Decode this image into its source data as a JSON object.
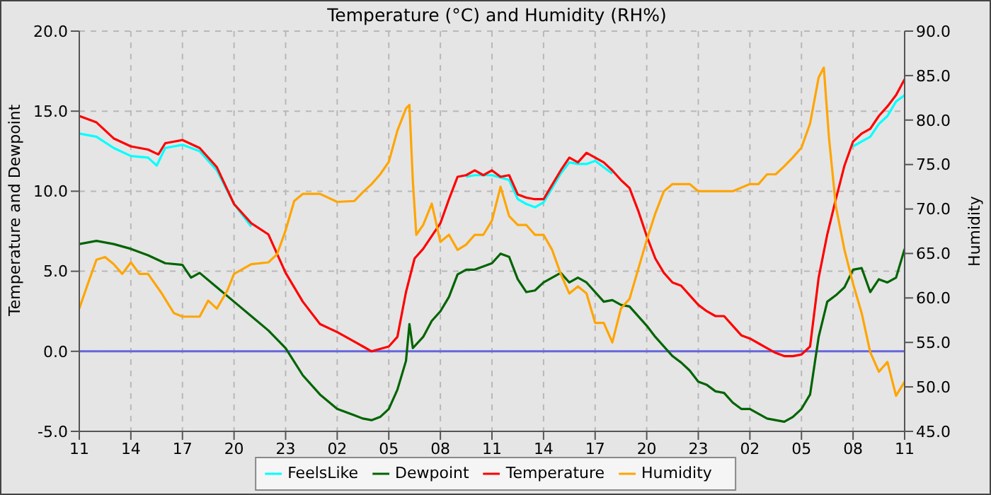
{
  "chart_data": {
    "type": "line",
    "title": "Temperature (°C) and Humidity (RH%)",
    "ylabel": "Temperature and Dewpoint",
    "y2label": "Humidity",
    "xlim": [
      "--01-01T11:00",
      "--01-03T11:00"
    ],
    "xticks": [
      {
        "value": "--01-01T11:00",
        "label": "11"
      },
      {
        "value": "--01-01T14:00",
        "label": "14"
      },
      {
        "value": "--01-01T17:00",
        "label": "17"
      },
      {
        "value": "--01-01T20:00",
        "label": "20"
      },
      {
        "value": "--01-01T23:00",
        "label": "23"
      },
      {
        "value": "--01-02T02:00",
        "label": "02"
      },
      {
        "value": "--01-02T05:00",
        "label": "05"
      },
      {
        "value": "--01-02T08:00",
        "label": "08"
      },
      {
        "value": "--01-02T11:00",
        "label": "11"
      },
      {
        "value": "--01-02T14:00",
        "label": "14"
      },
      {
        "value": "--01-02T17:00",
        "label": "17"
      },
      {
        "value": "--01-02T20:00",
        "label": "20"
      },
      {
        "value": "--01-02T23:00",
        "label": "23"
      },
      {
        "value": "--01-03T02:00",
        "label": "02"
      },
      {
        "value": "--01-03T05:00",
        "label": "05"
      },
      {
        "value": "--01-03T08:00",
        "label": "08"
      },
      {
        "value": "--01-03T11:00",
        "label": "11"
      }
    ],
    "ylim": [
      -5,
      20
    ],
    "yticks": [
      {
        "value": -5,
        "label": "-5.0"
      },
      {
        "value": 0,
        "label": "0.0"
      },
      {
        "value": 5,
        "label": "5.0"
      },
      {
        "value": 10,
        "label": "10.0"
      },
      {
        "value": 15,
        "label": "15.0"
      },
      {
        "value": 20,
        "label": "20.0"
      }
    ],
    "y2lim": [
      45,
      90
    ],
    "y2ticks": [
      {
        "value": 45,
        "label": "45.0"
      },
      {
        "value": 50,
        "label": "50.0"
      },
      {
        "value": 55,
        "label": "55.0"
      },
      {
        "value": 60,
        "label": "60.0"
      },
      {
        "value": 65,
        "label": "65.0"
      },
      {
        "value": 70,
        "label": "70.0"
      },
      {
        "value": 75,
        "label": "75.0"
      },
      {
        "value": 80,
        "label": "80.0"
      },
      {
        "value": 85,
        "label": "85.0"
      },
      {
        "value": 90,
        "label": "90.0"
      }
    ],
    "grid": true,
    "legend": "bottom",
    "line_style": "solid",
    "marker": "none",
    "ref_lines": [
      {
        "axis": "y",
        "value": 0,
        "color": "#6666dd"
      }
    ],
    "series": [
      {
        "name": "FeelsLike",
        "color": "#00ffff",
        "x": [
          "--01-01T11:00",
          "--01-01T12:00",
          "--01-01T13:00",
          "--01-01T14:00",
          "--01-01T15:00",
          "--01-01T15:30",
          "--01-01T16:00",
          "--01-01T17:00",
          "--01-01T18:00",
          "--01-01T19:00",
          "--01-01T20:00",
          "--01-01T21:00",
          "--01-01T22:00",
          "--01-02T09:30",
          "--01-02T10:00",
          "--01-02T11:00",
          "--01-02T12:00",
          "--01-02T12:30",
          "--01-02T13:00",
          "--01-02T13:30",
          "--01-02T14:00",
          "--01-02T14:30",
          "--01-02T15:00",
          "--01-02T15:30",
          "--01-02T16:00",
          "--01-02T16:30",
          "--01-02T17:00",
          "--01-02T17:30",
          "--01-02T18:00",
          "--01-02T19:00",
          "--01-03T08:00",
          "--01-03T08:30",
          "--01-03T09:00",
          "--01-03T09:30",
          "--01-03T10:00",
          "--01-03T10:30",
          "--01-03T11:00"
        ],
        "values": [
          13.6,
          13.4,
          12.7,
          12.2,
          12.1,
          11.6,
          12.7,
          12.9,
          12.5,
          11.3,
          9.2,
          7.8,
          null,
          10.9,
          11.0,
          11.0,
          10.7,
          9.5,
          9.2,
          9.0,
          9.3,
          10.2,
          11.1,
          11.8,
          11.7,
          11.7,
          11.9,
          11.5,
          11.1,
          null,
          12.8,
          13.1,
          13.4,
          14.2,
          14.7,
          15.6,
          16.0
        ]
      },
      {
        "name": "Dewpoint",
        "color": "#006400",
        "x": [
          "--01-01T11:00",
          "--01-01T12:00",
          "--01-01T13:00",
          "--01-01T14:00",
          "--01-01T15:00",
          "--01-01T16:00",
          "--01-01T17:00",
          "--01-01T17:30",
          "--01-01T18:00",
          "--01-01T19:00",
          "--01-01T20:00",
          "--01-01T21:00",
          "--01-01T22:00",
          "--01-01T23:00",
          "--01-02T00:00",
          "--01-02T01:00",
          "--01-02T02:00",
          "--01-02T03:00",
          "--01-02T03:30",
          "--01-02T04:00",
          "--01-02T04:30",
          "--01-02T05:00",
          "--01-02T05:30",
          "--01-02T06:00",
          "--01-02T06:12",
          "--01-02T06:24",
          "--01-02T07:00",
          "--01-02T07:30",
          "--01-02T08:00",
          "--01-02T08:30",
          "--01-02T09:00",
          "--01-02T09:30",
          "--01-02T10:00",
          "--01-02T11:00",
          "--01-02T11:30",
          "--01-02T12:00",
          "--01-02T12:30",
          "--01-02T13:00",
          "--01-02T13:30",
          "--01-02T14:00",
          "--01-02T14:30",
          "--01-02T15:00",
          "--01-02T15:30",
          "--01-02T16:00",
          "--01-02T16:30",
          "--01-02T17:00",
          "--01-02T17:30",
          "--01-02T18:00",
          "--01-02T18:30",
          "--01-02T19:00",
          "--01-02T20:00",
          "--01-02T20:30",
          "--01-02T21:00",
          "--01-02T21:30",
          "--01-02T22:00",
          "--01-02T22:30",
          "--01-02T23:00",
          "--01-02T23:30",
          "--01-03T00:00",
          "--01-03T00:30",
          "--01-03T01:00",
          "--01-03T01:30",
          "--01-03T02:00",
          "--01-03T02:30",
          "--01-03T03:00",
          "--01-03T03:30",
          "--01-03T04:00",
          "--01-03T04:30",
          "--01-03T05:00",
          "--01-03T05:30",
          "--01-03T06:00",
          "--01-03T06:30",
          "--01-03T07:00",
          "--01-03T07:30",
          "--01-03T08:00",
          "--01-03T08:30",
          "--01-03T09:00",
          "--01-03T09:30",
          "--01-03T10:00",
          "--01-03T10:30",
          "--01-03T11:00"
        ],
        "values": [
          6.7,
          6.9,
          6.7,
          6.4,
          6.0,
          5.5,
          5.4,
          4.6,
          4.9,
          4.0,
          3.1,
          2.2,
          1.3,
          0.2,
          -1.5,
          -2.7,
          -3.6,
          -4.0,
          -4.2,
          -4.3,
          -4.1,
          -3.6,
          -2.4,
          -0.6,
          1.7,
          0.2,
          0.9,
          1.9,
          2.5,
          3.4,
          4.8,
          5.1,
          5.1,
          5.5,
          6.1,
          5.9,
          4.5,
          3.7,
          3.8,
          4.3,
          4.6,
          4.9,
          4.3,
          4.6,
          4.3,
          3.7,
          3.1,
          3.2,
          2.9,
          2.8,
          1.6,
          0.9,
          0.3,
          -0.3,
          -0.7,
          -1.2,
          -1.9,
          -2.1,
          -2.5,
          -2.6,
          -3.2,
          -3.6,
          -3.6,
          -3.9,
          -4.2,
          -4.3,
          -4.4,
          -4.1,
          -3.6,
          -2.7,
          0.9,
          3.1,
          3.5,
          4.0,
          5.1,
          5.2,
          3.7,
          4.5,
          4.3,
          4.6,
          6.4
        ]
      },
      {
        "name": "Temperature",
        "color": "#ff0000",
        "x": [
          "--01-01T11:00",
          "--01-01T12:00",
          "--01-01T13:00",
          "--01-01T14:00",
          "--01-01T15:00",
          "--01-01T15:36",
          "--01-01T16:00",
          "--01-01T17:00",
          "--01-01T18:00",
          "--01-01T19:00",
          "--01-01T20:00",
          "--01-01T21:00",
          "--01-01T22:00",
          "--01-01T23:00",
          "--01-02T00:00",
          "--01-02T01:00",
          "--01-02T02:00",
          "--01-02T03:00",
          "--01-02T03:30",
          "--01-02T04:00",
          "--01-02T05:00",
          "--01-02T05:30",
          "--01-02T06:00",
          "--01-02T06:30",
          "--01-02T07:00",
          "--01-02T08:00",
          "--01-02T08:30",
          "--01-02T09:00",
          "--01-02T09:30",
          "--01-02T10:00",
          "--01-02T10:30",
          "--01-02T11:00",
          "--01-02T11:30",
          "--01-02T12:00",
          "--01-02T12:30",
          "--01-02T13:00",
          "--01-02T13:30",
          "--01-02T14:00",
          "--01-02T14:30",
          "--01-02T15:00",
          "--01-02T15:30",
          "--01-02T16:00",
          "--01-02T16:30",
          "--01-02T17:00",
          "--01-02T17:30",
          "--01-02T18:00",
          "--01-02T18:30",
          "--01-02T19:00",
          "--01-02T19:30",
          "--01-02T20:00",
          "--01-02T20:30",
          "--01-02T21:00",
          "--01-02T21:30",
          "--01-02T22:00",
          "--01-02T22:30",
          "--01-02T23:00",
          "--01-02T23:30",
          "--01-03T00:00",
          "--01-03T00:30",
          "--01-03T01:00",
          "--01-03T01:30",
          "--01-03T02:00",
          "--01-03T02:30",
          "--01-03T03:00",
          "--01-03T03:30",
          "--01-03T04:00",
          "--01-03T04:30",
          "--01-03T05:00",
          "--01-03T05:30",
          "--01-03T06:00",
          "--01-03T06:30",
          "--01-03T07:00",
          "--01-03T07:30",
          "--01-03T08:00",
          "--01-03T08:30",
          "--01-03T09:00",
          "--01-03T09:30",
          "--01-03T10:00",
          "--01-03T10:30",
          "--01-03T11:00"
        ],
        "values": [
          14.7,
          14.3,
          13.3,
          12.8,
          12.6,
          12.3,
          13.0,
          13.2,
          12.7,
          11.5,
          9.2,
          8.0,
          7.3,
          4.9,
          3.1,
          1.7,
          1.2,
          0.6,
          0.3,
          0.0,
          0.3,
          0.9,
          3.7,
          5.8,
          6.4,
          8.0,
          9.5,
          10.9,
          11.0,
          11.3,
          11.0,
          11.3,
          10.9,
          11.0,
          9.8,
          9.6,
          9.5,
          9.5,
          10.4,
          11.3,
          12.1,
          11.8,
          12.4,
          12.1,
          11.8,
          11.3,
          10.7,
          10.2,
          8.8,
          7.2,
          5.8,
          4.9,
          4.3,
          4.1,
          3.5,
          2.9,
          2.5,
          2.2,
          2.2,
          1.6,
          1.0,
          0.8,
          0.5,
          0.2,
          -0.1,
          -0.3,
          -0.3,
          -0.2,
          0.3,
          4.6,
          7.3,
          9.5,
          11.6,
          13.1,
          13.6,
          13.9,
          14.7,
          15.3,
          16.0,
          17.0
        ]
      },
      {
        "name": "Humidity",
        "color": "#ffa500",
        "axis": "y2",
        "x": [
          "--01-01T11:00",
          "--01-01T11:30",
          "--01-01T12:00",
          "--01-01T12:30",
          "--01-01T13:00",
          "--01-01T13:30",
          "--01-01T14:00",
          "--01-01T14:30",
          "--01-01T15:00",
          "--01-01T15:48",
          "--01-01T16:30",
          "--01-01T17:00",
          "--01-01T18:00",
          "--01-01T18:30",
          "--01-01T19:00",
          "--01-01T19:36",
          "--01-01T20:00",
          "--01-01T21:00",
          "--01-01T22:00",
          "--01-01T22:30",
          "--01-01T23:00",
          "--01-01T23:30",
          "--01-02T00:00",
          "--01-02T01:00",
          "--01-02T02:00",
          "--01-02T03:00",
          "--01-02T03:30",
          "--01-02T04:00",
          "--01-02T04:30",
          "--01-02T05:00",
          "--01-02T05:30",
          "--01-02T06:00",
          "--01-02T06:12",
          "--01-02T06:24",
          "--01-02T06:36",
          "--01-02T07:00",
          "--01-02T07:30",
          "--01-02T08:00",
          "--01-02T08:30",
          "--01-02T09:00",
          "--01-02T09:30",
          "--01-02T10:00",
          "--01-02T10:30",
          "--01-02T11:00",
          "--01-02T11:30",
          "--01-02T12:00",
          "--01-02T12:30",
          "--01-02T13:00",
          "--01-02T13:30",
          "--01-02T14:00",
          "--01-02T14:30",
          "--01-02T15:00",
          "--01-02T15:30",
          "--01-02T16:00",
          "--01-02T16:30",
          "--01-02T17:00",
          "--01-02T17:30",
          "--01-02T18:00",
          "--01-02T18:30",
          "--01-02T19:00",
          "--01-02T20:00",
          "--01-02T20:30",
          "--01-02T21:00",
          "--01-02T21:30",
          "--01-02T22:30",
          "--01-02T23:00",
          "--01-03T01:00",
          "--01-03T02:00",
          "--01-03T02:30",
          "--01-03T03:00",
          "--01-03T03:30",
          "--01-03T04:00",
          "--01-03T04:30",
          "--01-03T05:00",
          "--01-03T05:30",
          "--01-03T06:00",
          "--01-03T06:18",
          "--01-03T06:36",
          "--01-03T07:00",
          "--01-03T07:30",
          "--01-03T08:00",
          "--01-03T08:30",
          "--01-03T09:00",
          "--01-03T09:30",
          "--01-03T10:00",
          "--01-03T10:30",
          "--01-03T11:00"
        ],
        "values": [
          58.8,
          61.6,
          64.3,
          64.6,
          63.8,
          62.7,
          64.0,
          62.7,
          62.7,
          60.5,
          58.3,
          57.9,
          57.9,
          59.7,
          58.8,
          60.8,
          62.7,
          63.8,
          64.0,
          64.9,
          67.6,
          70.9,
          71.7,
          71.7,
          70.8,
          70.9,
          71.9,
          72.8,
          73.9,
          75.3,
          78.8,
          81.3,
          81.7,
          73.1,
          67.1,
          68.2,
          70.6,
          66.3,
          67.1,
          65.4,
          66.0,
          67.1,
          67.1,
          68.7,
          72.5,
          69.2,
          68.2,
          68.2,
          67.1,
          67.1,
          65.4,
          62.7,
          60.5,
          61.3,
          60.5,
          57.2,
          57.2,
          55.0,
          58.8,
          59.9,
          66.5,
          69.5,
          72.0,
          72.8,
          72.8,
          72.0,
          72.0,
          72.8,
          72.8,
          73.9,
          73.9,
          74.8,
          75.8,
          76.9,
          79.6,
          84.8,
          85.9,
          78.0,
          70.3,
          65.4,
          61.6,
          58.3,
          53.9,
          51.7,
          52.8,
          49.0,
          50.6
        ]
      }
    ]
  }
}
